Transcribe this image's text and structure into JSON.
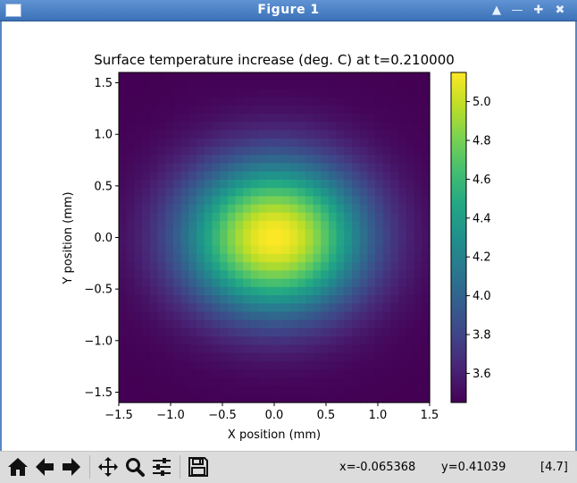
{
  "window": {
    "title": "Figure 1",
    "controls": [
      "minimize",
      "restore",
      "maximize",
      "close"
    ],
    "accent": "#4a80c4"
  },
  "chart_data": {
    "type": "heatmap",
    "title": "Surface temperature increase (deg. C) at t=0.210000",
    "xlabel": "X position (mm)",
    "ylabel": "Y position (mm)",
    "xlim": [
      -1.5,
      1.5
    ],
    "ylim": [
      -1.6,
      1.6
    ],
    "xticks": [
      -1.5,
      -1.0,
      -0.5,
      0.0,
      0.5,
      1.0,
      1.5
    ],
    "xtick_labels": [
      "−1.5",
      "−1.0",
      "−0.5",
      "0.0",
      "0.5",
      "1.0",
      "1.5"
    ],
    "yticks": [
      -1.5,
      -1.0,
      -0.5,
      0.0,
      0.5,
      1.0,
      1.5
    ],
    "ytick_labels": [
      "−1.5",
      "−1.0",
      "−0.5",
      "0.0",
      "0.5",
      "1.0",
      "1.5"
    ],
    "colormap": "viridis",
    "colorbar": {
      "vmin": 3.45,
      "vmax": 5.15,
      "ticks": [
        3.6,
        3.8,
        4.0,
        4.2,
        4.4,
        4.6,
        4.8,
        5.0
      ],
      "tick_labels": [
        "3.6",
        "3.8",
        "4.0",
        "4.2",
        "4.4",
        "4.6",
        "4.8",
        "5.0"
      ]
    },
    "grid": false,
    "nx": 40,
    "ny": 40,
    "field": {
      "base": 3.45,
      "peak": 5.15,
      "center": [
        0.0,
        0.0
      ],
      "half_width_x": 0.65,
      "half_width_y": 0.55,
      "falloff_power": 2.1
    }
  },
  "toolbar": {
    "buttons": [
      {
        "name": "home-icon",
        "label": "Home"
      },
      {
        "name": "back-icon",
        "label": "Back"
      },
      {
        "name": "forward-icon",
        "label": "Forward"
      },
      {
        "name": "pan-icon",
        "label": "Pan"
      },
      {
        "name": "zoom-icon",
        "label": "Zoom"
      },
      {
        "name": "subplots-icon",
        "label": "Configure subplots"
      },
      {
        "name": "save-icon",
        "label": "Save"
      }
    ],
    "status": {
      "x": "x=-0.065368",
      "y": "y=0.41039",
      "value": "[4.7]"
    }
  }
}
